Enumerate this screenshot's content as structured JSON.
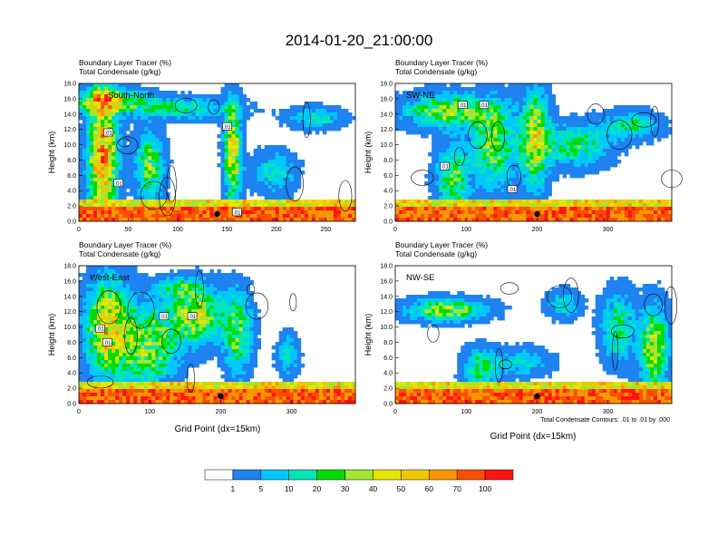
{
  "figure": {
    "title": "2014-01-20_21:00:00",
    "xlabel": "Grid Point (dx=15km)",
    "contour_note": "Total Condensate Contours: .01 to .01 by .000"
  },
  "colorbar": {
    "colors": [
      "#ffffff",
      "#1e82f0",
      "#00c8ff",
      "#00e6b4",
      "#00dc00",
      "#a0e632",
      "#e6e600",
      "#f0c800",
      "#fa9600",
      "#fa5000",
      "#ff1414"
    ],
    "labels": [
      "1",
      "5",
      "10",
      "20",
      "30",
      "40",
      "50",
      "60",
      "70",
      "100"
    ]
  },
  "chart_data": [
    {
      "type": "heatmap",
      "label": "South-North",
      "title_line1": "Boundary Layer Tracer   (%)",
      "title_line2": "Total Condensate   (g/kg)",
      "ylabel": "Height (km)",
      "xlim": [
        0,
        280
      ],
      "ylim": [
        0,
        18
      ],
      "xticks": [
        0,
        50,
        100,
        150,
        200,
        250
      ],
      "yticks": [
        "0.0",
        "2.0",
        "4.0",
        "6.0",
        "8.0",
        "10.0",
        "12.0",
        "14.0",
        "16.0",
        "18.0"
      ],
      "marker_x": 140,
      "contour_labels": [
        [
          30,
          11.6
        ],
        [
          150,
          12.4
        ],
        [
          40,
          5.0
        ],
        [
          160,
          1.2
        ]
      ]
    },
    {
      "type": "heatmap",
      "label": "SW-NE",
      "title_line1": "Boundary Layer Tracer   (%)",
      "title_line2": "Total Condensate   (g/kg)",
      "ylabel": "Height (km)",
      "xlim": [
        0,
        390
      ],
      "ylim": [
        0,
        18
      ],
      "xticks": [
        0,
        100,
        200,
        300
      ],
      "yticks": [
        "0.0",
        "2.0",
        "4.0",
        "6.0",
        "8.0",
        "10.0",
        "12.0",
        "14.0",
        "16.0",
        "18.0"
      ],
      "marker_x": 200,
      "contour_labels": [
        [
          95,
          15.2
        ],
        [
          70,
          7.2
        ],
        [
          165,
          4.2
        ],
        [
          125,
          15.2
        ]
      ]
    },
    {
      "type": "heatmap",
      "label": "West-East",
      "title_line1": "Boundary Layer Tracer   (%)",
      "title_line2": "Total Condensate   (g/kg)",
      "ylabel": "Height (km)",
      "xlim": [
        0,
        390
      ],
      "ylim": [
        0,
        18
      ],
      "xticks": [
        0,
        100,
        200,
        300
      ],
      "yticks": [
        "0.0",
        "2.0",
        "4.0",
        "6.0",
        "8.0",
        "10.0",
        "12.0",
        "14.0",
        "16.0",
        "18.0"
      ],
      "marker_x": 200,
      "contour_labels": [
        [
          30,
          9.8
        ],
        [
          40,
          8.0
        ],
        [
          120,
          11.4
        ],
        [
          160,
          11.4
        ]
      ]
    },
    {
      "type": "heatmap",
      "label": "NW-SE",
      "title_line1": "Boundary Layer Tracer   (%)",
      "title_line2": "Total Condensate   (g/kg)",
      "ylabel": "Height (km)",
      "xlim": [
        0,
        390
      ],
      "ylim": [
        0,
        18
      ],
      "xticks": [
        0,
        100,
        200,
        300
      ],
      "yticks": [
        "0.0",
        "2.0",
        "4.0",
        "6.0",
        "8.0",
        "10.0",
        "12.0",
        "14.0",
        "16.0",
        "18.0"
      ],
      "marker_x": 200,
      "contour_labels": []
    }
  ]
}
